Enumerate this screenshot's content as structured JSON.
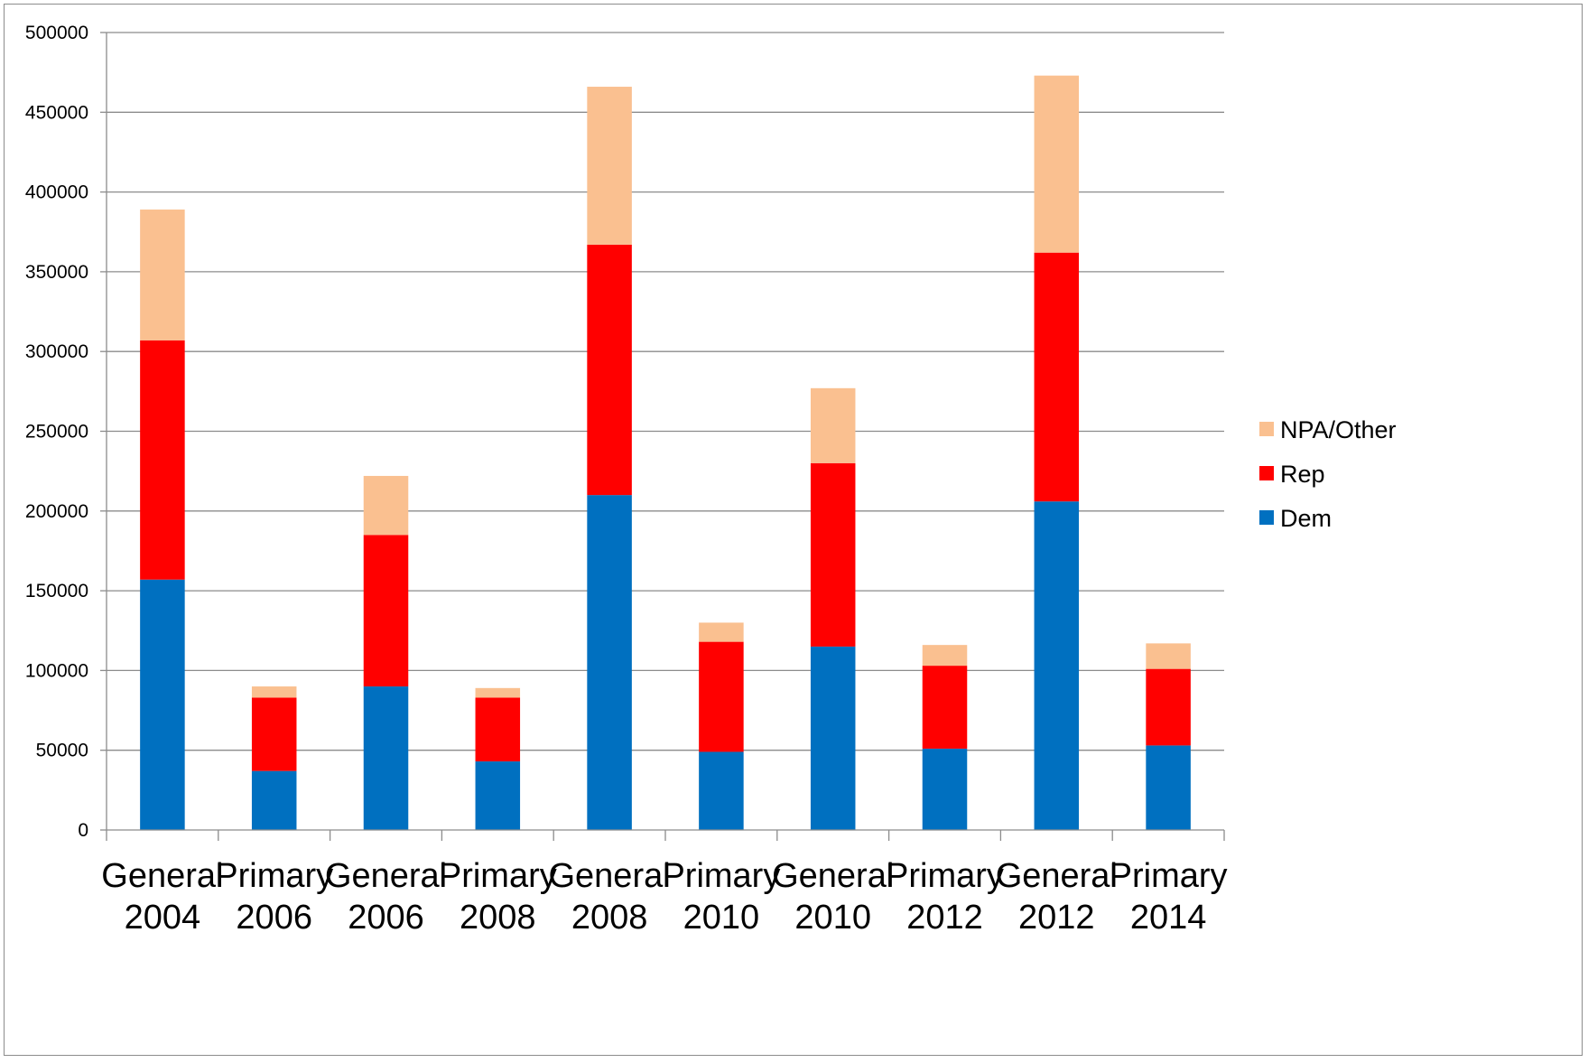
{
  "chart_data": {
    "type": "bar",
    "stacked": true,
    "categories": [
      [
        "General",
        "2004"
      ],
      [
        "Primary",
        "2006"
      ],
      [
        "General",
        "2006"
      ],
      [
        "Primary",
        "2008"
      ],
      [
        "General",
        "2008"
      ],
      [
        "Primary",
        "2010"
      ],
      [
        "General",
        "2010"
      ],
      [
        "Primary",
        "2012"
      ],
      [
        "General",
        "2012"
      ],
      [
        "Primary",
        "2014"
      ]
    ],
    "series": [
      {
        "name": "Dem",
        "color": "#0070c0",
        "values": [
          157000,
          37000,
          90000,
          43000,
          210000,
          49000,
          115000,
          51000,
          206000,
          53000
        ]
      },
      {
        "name": "Rep",
        "color": "#ff0000",
        "values": [
          150000,
          46000,
          95000,
          40000,
          157000,
          69000,
          115000,
          52000,
          156000,
          48000
        ]
      },
      {
        "name": "NPA/Other",
        "color": "#fac090",
        "values": [
          82000,
          7000,
          37000,
          6000,
          99000,
          12000,
          47000,
          13000,
          111000,
          16000
        ]
      }
    ],
    "legend_order": [
      "NPA/Other",
      "Rep",
      "Dem"
    ],
    "y_ticks": [
      "0",
      "50000",
      "100000",
      "150000",
      "200000",
      "250000",
      "300000",
      "350000",
      "400000",
      "450000",
      "500000"
    ],
    "ylim": [
      0,
      500000
    ],
    "grid": true,
    "legend_position": "right",
    "title": "",
    "xlabel": "",
    "ylabel": ""
  }
}
